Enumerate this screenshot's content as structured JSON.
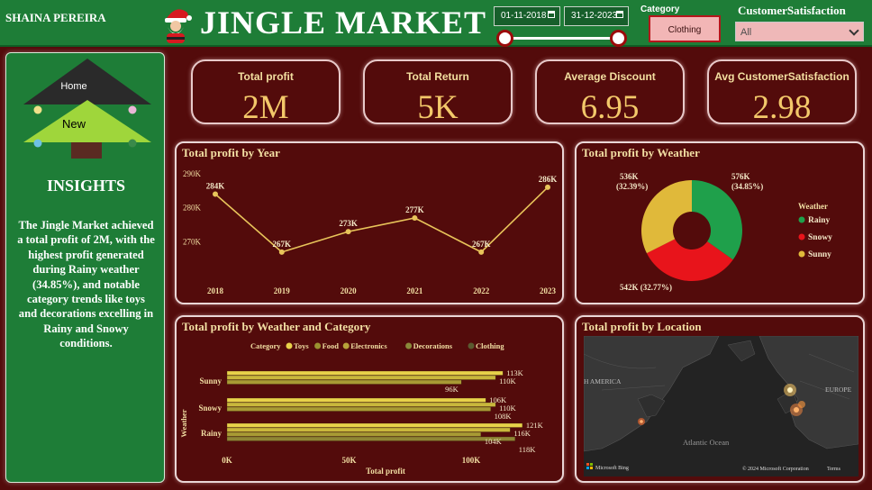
{
  "header": {
    "author": "SHAINA PEREIRA",
    "title": "JINGLE MARKET",
    "date_start": "01-11-2018",
    "date_end": "31-12-2023",
    "category_label": "Category",
    "category_selected": "Clothing",
    "satisfaction_label": "CustomerSatisfaction",
    "satisfaction_selected": "All"
  },
  "sidebar": {
    "home_label": "Home",
    "new_label": "New",
    "insights_title": "INSIGHTS",
    "insights_text": "The Jingle Market achieved a total profit of 2M, with the highest profit generated during Rainy weather (34.85%), and notable category trends like toys and decorations excelling in Rainy and Snowy conditions."
  },
  "kpis": [
    {
      "label": "Total profit",
      "value": "2M"
    },
    {
      "label": "Total Return",
      "value": "5K"
    },
    {
      "label": "Average Discount",
      "value": "6.95"
    },
    {
      "label": "Avg CustomerSatisfaction",
      "value": "2.98"
    }
  ],
  "colors": {
    "background": "#530b0b",
    "header_green": "#1e7d37",
    "gold": "#f3c86a",
    "line": "#e8c45a",
    "rainy": "#1fa04b",
    "snowy": "#e8141b",
    "sunny": "#e0b93a",
    "toys": "#e8d24a",
    "food": "#9a9230",
    "electronics": "#b8a23a",
    "decorations": "#8a8a3a",
    "clothing": "#5a5a30"
  },
  "chart_data": [
    {
      "type": "line",
      "title": "Total profit by Year",
      "x": [
        "2018",
        "2019",
        "2020",
        "2021",
        "2022",
        "2023"
      ],
      "y": [
        284,
        267,
        273,
        277,
        267,
        286
      ],
      "data_labels": [
        "284K",
        "267K",
        "273K",
        "277K",
        "267K",
        "286K"
      ],
      "y_ticks": [
        "290K",
        "280K",
        "270K"
      ],
      "ylim": [
        263,
        291
      ]
    },
    {
      "type": "pie",
      "title": "Total profit by Weather",
      "legend_title": "Weather",
      "series": [
        {
          "name": "Rainy",
          "value": 576,
          "percent": 34.85,
          "label": "576K",
          "pct_label": "(34.85%)"
        },
        {
          "name": "Snowy",
          "value": 542,
          "percent": 32.77,
          "label": "542K (32.77%)"
        },
        {
          "name": "Sunny",
          "value": 536,
          "percent": 32.39,
          "label": "536K",
          "pct_label": "(32.39%)"
        }
      ]
    },
    {
      "type": "bar",
      "title": "Total profit by Weather and Category",
      "legend_title": "Category",
      "categories": [
        "Sunny",
        "Snowy",
        "Rainy"
      ],
      "series": [
        {
          "name": "Toys",
          "values": [
            113,
            106,
            121
          ]
        },
        {
          "name": "Food",
          "values": [
            110,
            110,
            116
          ]
        },
        {
          "name": "Electronics",
          "values": [
            96,
            108,
            104
          ]
        },
        {
          "name": "Decorations",
          "values": [
            null,
            null,
            118
          ]
        },
        {
          "name": "Clothing",
          "values": [
            null,
            null,
            null
          ]
        }
      ],
      "bar_labels": [
        [
          "113K",
          "110K",
          "96K"
        ],
        [
          "106K",
          "110K",
          "108K"
        ],
        [
          "121K",
          "116K",
          "104K",
          "118K"
        ]
      ],
      "xlabel": "Total profit",
      "ylabel": "Weather",
      "x_ticks": [
        "0K",
        "50K",
        "100K"
      ],
      "xlim": [
        0,
        130
      ]
    }
  ],
  "map": {
    "title": "Total profit by Location",
    "label_america": "H AMERICA",
    "label_europe": "EUROPE",
    "label_ocean": "Atlantic Ocean",
    "brand": "Microsoft Bing",
    "copyright": "© 2024 Microsoft Corporation",
    "terms": "Terms"
  }
}
